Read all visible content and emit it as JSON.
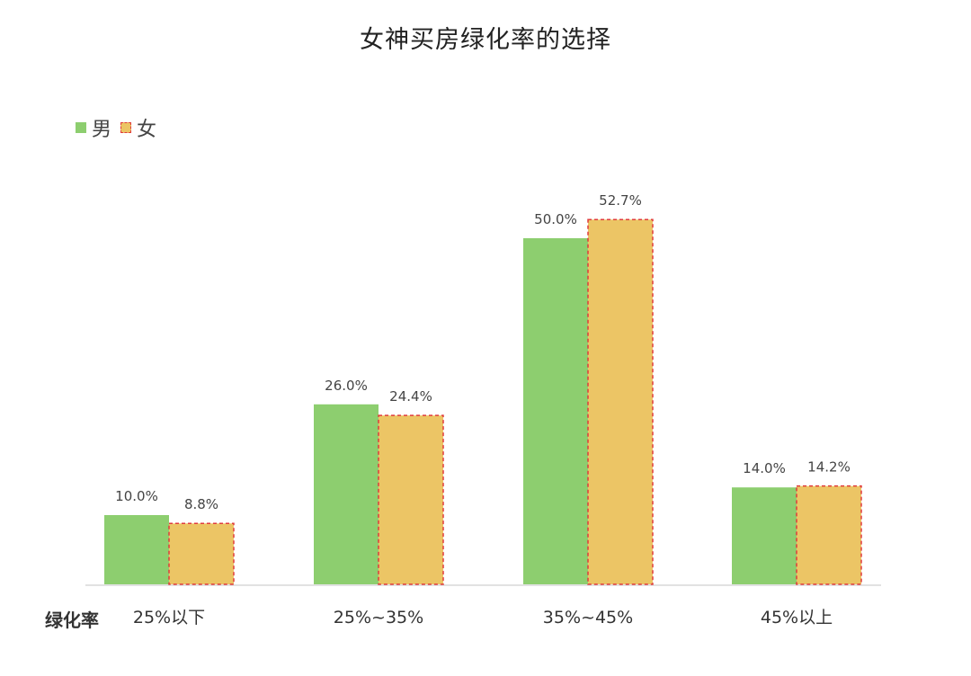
{
  "chart_data": {
    "type": "bar",
    "title": "女神买房绿化率的选择",
    "xlabel": "绿化率",
    "ylabel": "",
    "categories": [
      "25%以下",
      "25%~35%",
      "35%~45%",
      "45%以上"
    ],
    "series": [
      {
        "name": "男",
        "values": [
          10.0,
          26.0,
          50.0,
          14.0
        ],
        "labels": [
          "10.0%",
          "26.0%",
          "50.0%",
          "14.0%"
        ],
        "color": "#8dce6f"
      },
      {
        "name": "女",
        "values": [
          8.8,
          24.4,
          52.7,
          14.2
        ],
        "labels": [
          "8.8%",
          "24.4%",
          "52.7%",
          "14.2%"
        ],
        "color": "#ecc565",
        "border_color": "#e03c3c",
        "border_style": "dashed"
      }
    ],
    "ylim": [
      0,
      60
    ],
    "grid": false,
    "legend_position": "top-left"
  }
}
